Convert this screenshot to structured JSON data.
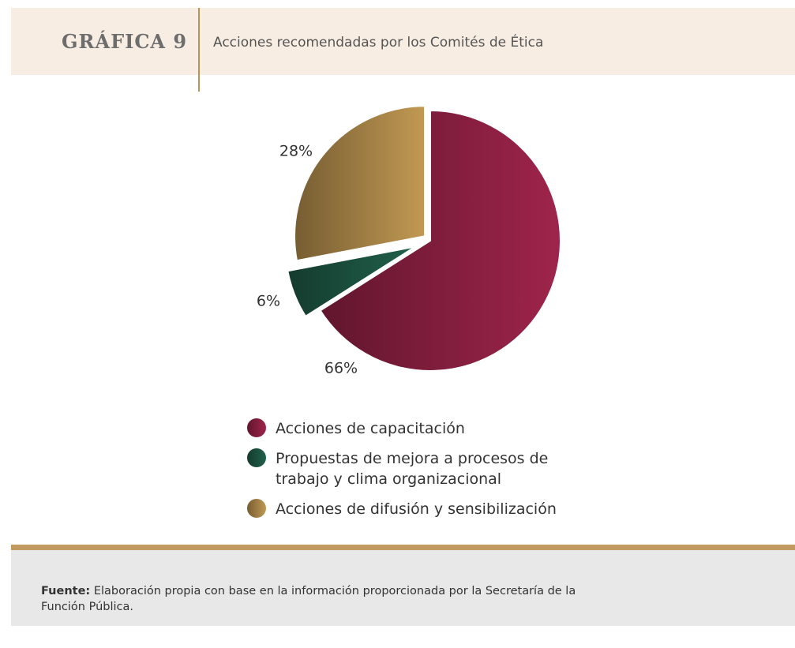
{
  "chart_data": {
    "type": "pie",
    "title": "GRÁFICA 9",
    "subtitle": "Acciones recomendadas por los Comités de Ética",
    "series": [
      {
        "name": "Acciones de capacitación",
        "color": "#8a1f42",
        "values": [
          66
        ],
        "value_labels": [
          "66%"
        ]
      },
      {
        "name": "Propuestas de mejora a procesos de trabajo y clima organizacional",
        "color": "#1d5441",
        "values": [
          6
        ],
        "value_labels": [
          "6%"
        ]
      },
      {
        "name": "Acciones de difusión y sensibilización",
        "color": "#a88548",
        "values": [
          28
        ],
        "value_labels": [
          "28%"
        ]
      }
    ],
    "source_label": "Fuente:",
    "source": "Elaboración propia con base en la información proporcionada por la Secretaría de la Función Pública."
  }
}
